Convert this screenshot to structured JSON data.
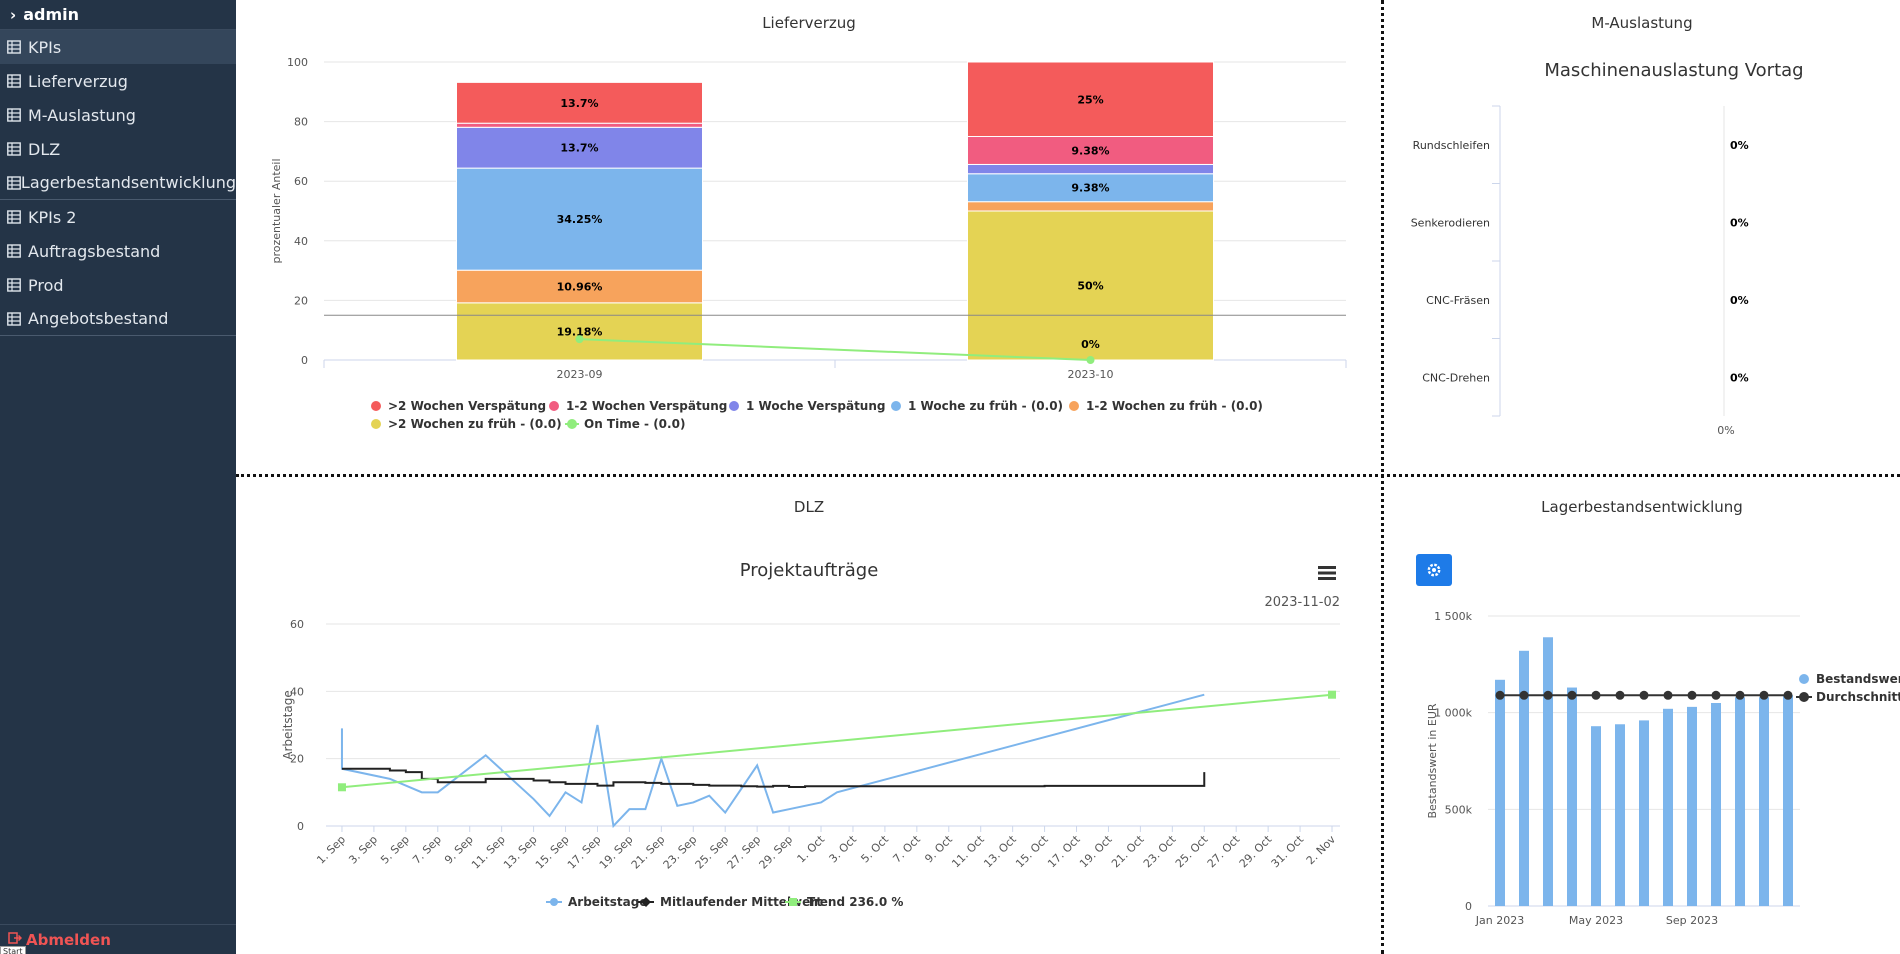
{
  "sidebar": {
    "user": "admin",
    "items": [
      {
        "label": "KPIs"
      },
      {
        "label": "Lieferverzug"
      },
      {
        "label": "M-Auslastung"
      },
      {
        "label": "DLZ"
      },
      {
        "label": "Lagerbestandsentwicklung"
      },
      {
        "label": "KPIs 2"
      },
      {
        "label": "Auftragsbestand"
      },
      {
        "label": "Prod"
      },
      {
        "label": "Angebotsbestand"
      }
    ],
    "logout": "Abmelden",
    "start_tag": "Start"
  },
  "panels": {
    "lieferverzug": "Lieferverzug",
    "auslastung": "M-Auslastung",
    "dlz": "DLZ",
    "lager": "Lagerbestandsentwicklung"
  },
  "colors": {
    "red": "#f45b5b",
    "pink": "#f15c80",
    "purple": "#8085e9",
    "blue": "#7cb5ec",
    "orange": "#f7a35c",
    "yellow": "#e4d354",
    "green": "#90ed7d",
    "black": "#222222"
  },
  "chart_data": [
    {
      "type": "bar",
      "stacked": true,
      "ylabel": "prozentualer Anteil",
      "ylim": [
        0,
        100
      ],
      "yticks": [
        0,
        20,
        40,
        60,
        80,
        100
      ],
      "categories": [
        "2023-09",
        "2023-10"
      ],
      "plotline": 15,
      "series": [
        {
          "name": ">2 Wochen Verspätung",
          "color": "#f45b5b",
          "values": [
            13.7,
            25
          ],
          "labels": [
            "13.7%",
            "25%"
          ]
        },
        {
          "name": "1-2 Wochen Verspätung",
          "color": "#f15c80",
          "values": [
            1.37,
            9.38
          ],
          "labels": [
            "",
            "9.38%"
          ]
        },
        {
          "name": "1 Woche Verspätung",
          "color": "#8085e9",
          "values": [
            13.7,
            3.12
          ],
          "labels": [
            "13.7%",
            ""
          ]
        },
        {
          "name": "1 Woche zu früh - (0.0)",
          "color": "#7cb5ec",
          "values": [
            34.25,
            9.38
          ],
          "labels": [
            "34.25%",
            "9.38%"
          ]
        },
        {
          "name": "1-2 Wochen zu früh - (0.0)",
          "color": "#f7a35c",
          "values": [
            10.96,
            3.12
          ],
          "labels": [
            "10.96%",
            ""
          ]
        },
        {
          "name": ">2 Wochen zu früh - (0.0)",
          "color": "#e4d354",
          "values": [
            19.18,
            50
          ],
          "labels": [
            "19.18%",
            "50%"
          ]
        }
      ],
      "line": {
        "name": "On Time - (0.0)",
        "color": "#90ed7d",
        "values": [
          7,
          0
        ],
        "labels": [
          "",
          "0%"
        ]
      }
    },
    {
      "type": "bar",
      "horizontal": true,
      "title": "Maschinenauslastung Vortag",
      "categories": [
        "Rundschleifen",
        "Senkerodieren",
        "CNC-Fräsen",
        "CNC-Drehen"
      ],
      "values": [
        0,
        0,
        0,
        0
      ],
      "labels": [
        "0%",
        "0%",
        "0%",
        "0%"
      ],
      "xticks": [
        "0%"
      ]
    },
    {
      "type": "line",
      "title": "Projektaufträge",
      "subtitle": "2023-11-02",
      "ylabel": "Arbeitstage",
      "ylim": [
        0,
        60
      ],
      "yticks": [
        0,
        20,
        40,
        60
      ],
      "xticks": [
        "1. Sep",
        "3. Sep",
        "5. Sep",
        "7. Sep",
        "9. Sep",
        "11. Sep",
        "13. Sep",
        "15. Sep",
        "17. Sep",
        "19. Sep",
        "21. Sep",
        "23. Sep",
        "25. Sep",
        "27. Sep",
        "29. Sep",
        "1. Oct",
        "3. Oct",
        "5. Oct",
        "7. Oct",
        "9. Oct",
        "11. Oct",
        "13. Oct",
        "15. Oct",
        "17. Oct",
        "19. Oct",
        "21. Oct",
        "23. Oct",
        "25. Oct",
        "27. Oct",
        "29. Oct",
        "31. Oct",
        "2. Nov"
      ],
      "series": [
        {
          "name": "Arbeitstage",
          "color": "#7cb5ec",
          "marker": "circle",
          "x": [
            1,
            1,
            4,
            6,
            7,
            10,
            13,
            14,
            15,
            16,
            17,
            18,
            19,
            20,
            21,
            22,
            23,
            24,
            25,
            27,
            28,
            29,
            31,
            32,
            55
          ],
          "y": [
            29,
            17,
            14,
            10,
            10,
            21,
            8,
            3,
            10,
            7,
            30,
            0,
            5,
            5,
            20,
            6,
            7,
            9,
            4,
            18,
            4,
            5,
            7,
            10,
            39
          ]
        },
        {
          "name": "Mitlaufender Mittelwert",
          "color": "#222222",
          "marker": "diamond",
          "x": [
            1,
            2,
            3,
            4,
            5,
            6,
            7,
            8,
            9,
            10,
            11,
            12,
            13,
            14,
            15,
            16,
            17,
            18,
            19,
            20,
            21,
            22,
            23,
            24,
            25,
            26,
            27,
            28,
            29,
            30,
            35,
            40,
            45,
            50,
            55,
            55
          ],
          "y": [
            17,
            17,
            17,
            16.5,
            16,
            14,
            13,
            13,
            13,
            14,
            14,
            14,
            13.5,
            13,
            12.5,
            12.5,
            12,
            13,
            13,
            12.8,
            12.5,
            12.5,
            12.2,
            12,
            12,
            11.8,
            11.7,
            11.9,
            11.6,
            11.8,
            11.8,
            11.8,
            11.9,
            11.9,
            12,
            16
          ]
        },
        {
          "name": "Trend 236.0 %",
          "color": "#90ed7d",
          "marker": "square",
          "x": [
            1,
            63
          ],
          "y": [
            11.5,
            39
          ]
        }
      ]
    },
    {
      "type": "bar",
      "ylabel": "Bestandswert in EUR",
      "ylim": [
        0,
        1500000
      ],
      "yticks": [
        "0",
        "500k",
        "1 000k",
        "1 500k"
      ],
      "xticks": [
        "Jan 2023",
        "May 2023",
        "Sep 2023"
      ],
      "series": [
        {
          "name": "Bestandswert",
          "color": "#7cb5ec",
          "values": [
            1170000,
            1320000,
            1390000,
            1130000,
            930000,
            940000,
            960000,
            1020000,
            1030000,
            1050000,
            1080000,
            1080000,
            1090000
          ]
        },
        {
          "name": "Durchschnitt",
          "color": "#333333",
          "values": [
            1090000,
            1090000,
            1090000,
            1090000,
            1090000,
            1090000,
            1090000,
            1090000,
            1090000,
            1090000,
            1090000,
            1090000,
            1090000
          ]
        }
      ]
    }
  ]
}
